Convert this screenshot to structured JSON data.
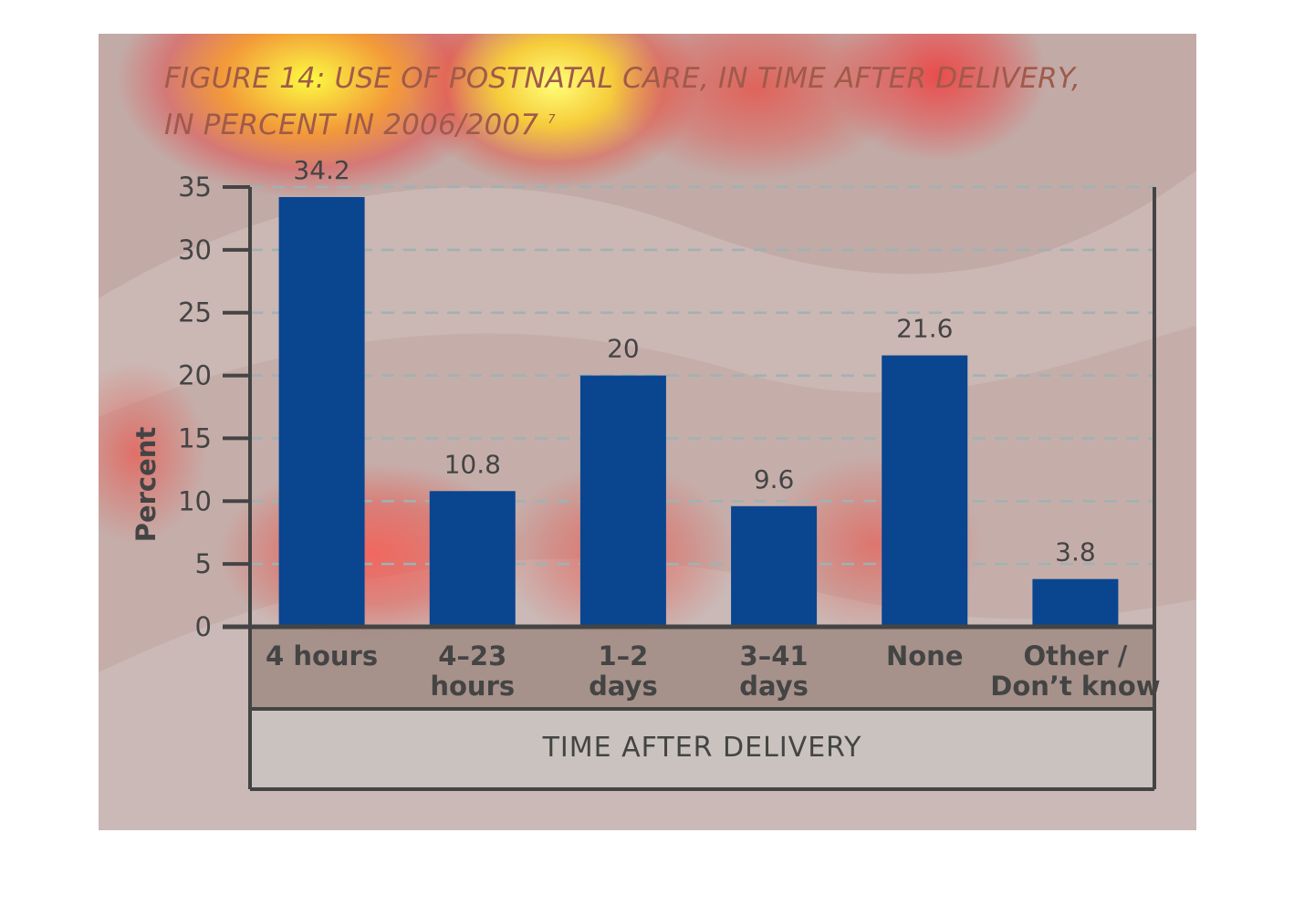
{
  "chart_data": {
    "type": "bar",
    "title_line1": "FIGURE 14: USE OF POSTNATAL CARE, IN TIME AFTER DELIVERY,",
    "title_line2": "IN PERCENT IN 2006/2007",
    "title_note": "7",
    "categories": [
      [
        "4 hours"
      ],
      [
        "4–23",
        "hours"
      ],
      [
        "1–2",
        "days"
      ],
      [
        "3–41",
        "days"
      ],
      [
        "None"
      ],
      [
        "Other /",
        "Don’t know"
      ]
    ],
    "values": [
      34.2,
      10.8,
      20,
      9.6,
      21.6,
      3.8
    ],
    "value_labels": [
      "34.2",
      "10.8",
      "20",
      "9.6",
      "21.6",
      "3.8"
    ],
    "xlabel": "TIME AFTER DELIVERY",
    "ylabel": "Percent",
    "ylim": [
      0,
      35
    ],
    "yticks": [
      0,
      5,
      10,
      15,
      20,
      25,
      30,
      35
    ],
    "grid": true,
    "bar_color": "#0a4590",
    "text_color": "#444444"
  }
}
